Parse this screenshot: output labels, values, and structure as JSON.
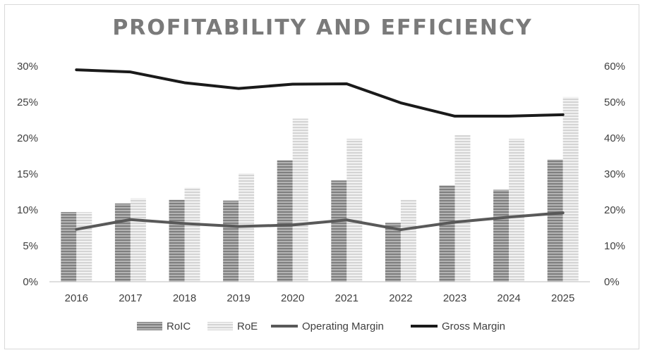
{
  "chart_data": {
    "type": "bar",
    "title": "PROFITABILITY AND EFFICIENCY",
    "categories": [
      "2016",
      "2017",
      "2018",
      "2019",
      "2020",
      "2021",
      "2022",
      "2023",
      "2024",
      "2025"
    ],
    "left_axis": {
      "ticks": [
        "0%",
        "5%",
        "10%",
        "15%",
        "20%",
        "25%",
        "30%"
      ],
      "ylim": [
        0,
        30
      ]
    },
    "right_axis": {
      "ticks": [
        "0%",
        "10%",
        "20%",
        "30%",
        "40%",
        "50%",
        "60%"
      ],
      "ylim": [
        0,
        60
      ]
    },
    "grid": false,
    "legend_position": "bottom",
    "series": [
      {
        "name": "RoIC",
        "type": "bar",
        "axis": "left",
        "color": "#8c8c8c",
        "values": [
          9.7,
          10.9,
          11.4,
          11.3,
          16.9,
          14.1,
          8.2,
          13.4,
          12.8,
          17.0
        ]
      },
      {
        "name": "RoE",
        "type": "bar",
        "axis": "left",
        "color": "#d9d9d9",
        "values": [
          9.7,
          11.6,
          13.1,
          15.1,
          22.7,
          19.9,
          11.4,
          20.4,
          19.9,
          25.7
        ]
      },
      {
        "name": "Operating Margin",
        "type": "line",
        "axis": "right",
        "color": "#595959",
        "values": [
          14.6,
          17.3,
          16.2,
          15.4,
          15.8,
          17.2,
          14.5,
          16.6,
          18.0,
          19.2
        ]
      },
      {
        "name": "Gross Margin",
        "type": "line",
        "axis": "right",
        "color": "#1a1a1a",
        "values": [
          59.0,
          58.4,
          55.4,
          53.8,
          55.0,
          55.1,
          49.8,
          46.1,
          46.1,
          46.5
        ]
      }
    ]
  }
}
